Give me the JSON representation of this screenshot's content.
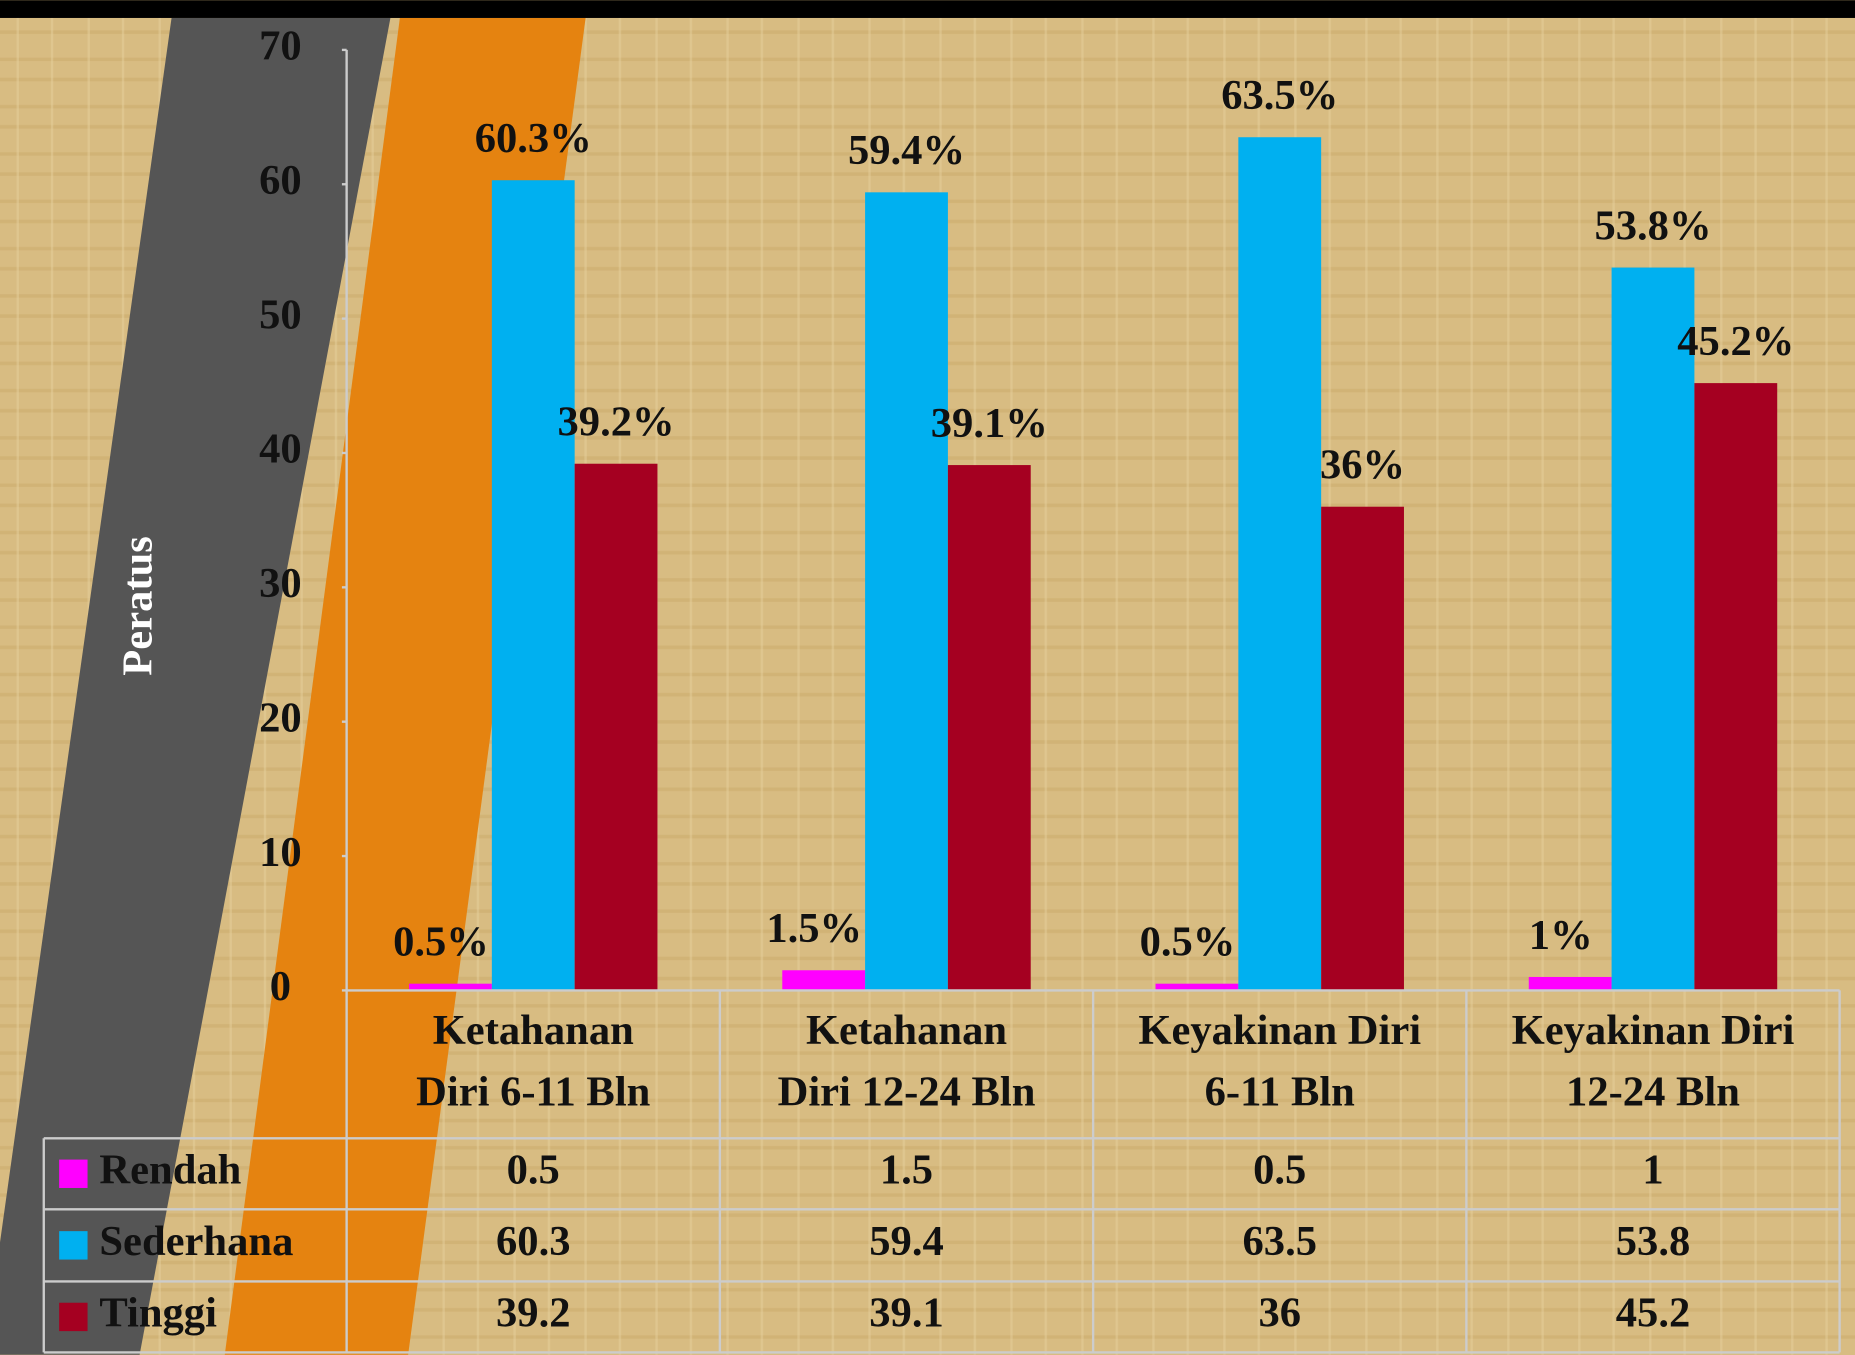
{
  "chart_data": {
    "type": "bar",
    "y_label": "Peratus",
    "categories": [
      [
        "Ketahanan",
        "Diri 6-11 Bln"
      ],
      [
        "Ketahanan",
        "Diri 12-24 Bln"
      ],
      [
        "Keyakinan Diri",
        "6-11 Bln"
      ],
      [
        "Keyakinan Diri",
        "12-24 Bln"
      ]
    ],
    "series": [
      {
        "name": "Rendah",
        "color": "#ff00ff",
        "values": [
          0.5,
          1.5,
          0.5,
          1
        ],
        "value_labels": [
          "0.5%",
          "1.5%",
          "0.5%",
          "1%"
        ]
      },
      {
        "name": "Sederhana",
        "color": "#00b0f0",
        "values": [
          60.3,
          59.4,
          63.5,
          53.8
        ],
        "value_labels": [
          "60.3%",
          "59.4%",
          "63.5%",
          "53.8%"
        ]
      },
      {
        "name": "Tinggi",
        "color": "#a50021",
        "values": [
          39.2,
          39.1,
          36,
          45.2
        ],
        "value_labels": [
          "39.2%",
          "39.1%",
          "36%",
          "45.2%"
        ]
      }
    ],
    "ylim": [
      0,
      70
    ],
    "yticks": [
      0,
      10,
      20,
      30,
      40,
      50,
      60,
      70
    ],
    "data_table": true
  }
}
